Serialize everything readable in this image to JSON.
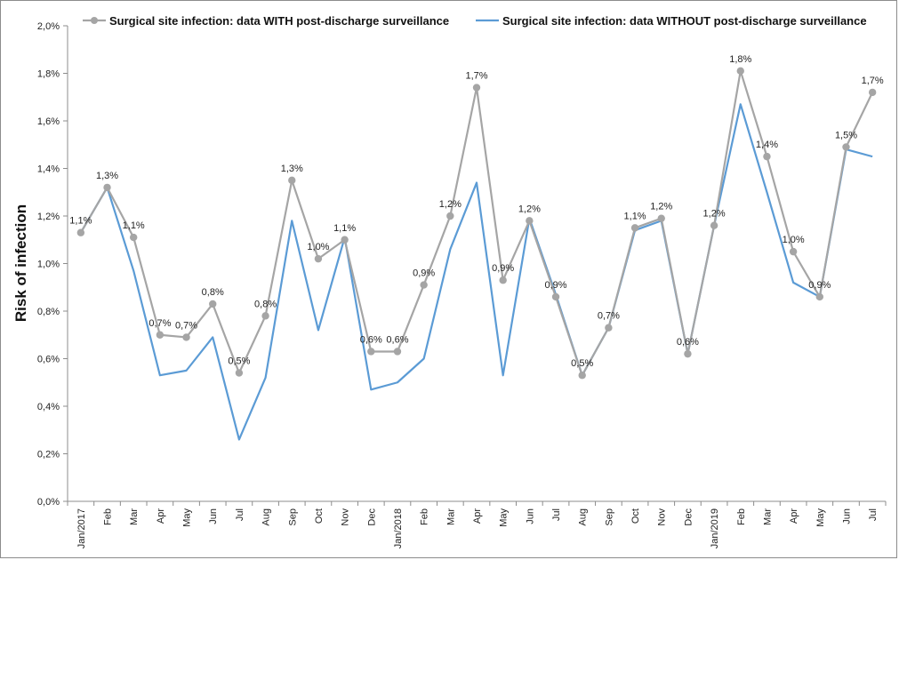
{
  "chart_data": {
    "type": "line",
    "ylabel": "Risk of infection",
    "xlabel": "",
    "ylim": [
      0,
      2.0
    ],
    "y_ticks": [
      "0,0%",
      "0,2%",
      "0,4%",
      "0,6%",
      "0,8%",
      "1,0%",
      "1,2%",
      "1,4%",
      "1,6%",
      "1,8%",
      "2,0%"
    ],
    "categories": [
      "Jan/2017",
      "Feb",
      "Mar",
      "Apr",
      "May",
      "Jun",
      "Jul",
      "Aug",
      "Sep",
      "Oct",
      "Nov",
      "Dec",
      "Jan/2018",
      "Feb",
      "Mar",
      "Apr",
      "May",
      "Jun",
      "Jul",
      "Aug",
      "Sep",
      "Oct",
      "Nov",
      "Dec",
      "Jan/2019",
      "Feb",
      "Mar",
      "Apr",
      "May",
      "Jun",
      "Jul"
    ],
    "legend_position": "top",
    "grid": false,
    "series": [
      {
        "name": "Surgical site infection: data WITH post-discharge surveillance",
        "color": "#a5a5a5",
        "marker": "circle",
        "values": [
          1.13,
          1.32,
          1.11,
          0.7,
          0.69,
          0.83,
          0.54,
          0.78,
          1.35,
          1.02,
          1.1,
          0.63,
          0.63,
          0.91,
          1.2,
          1.74,
          0.93,
          1.18,
          0.86,
          0.53,
          0.73,
          1.15,
          1.19,
          0.62,
          1.16,
          1.81,
          1.45,
          1.05,
          0.86,
          1.49,
          1.72
        ],
        "labels": [
          "1,1%",
          "1,3%",
          "1,1%",
          "0,7%",
          "0,7%",
          "0,8%",
          "0,5%",
          "0,8%",
          "1,3%",
          "1,0%",
          "1,1%",
          "0,6%",
          "0,6%",
          "0,9%",
          "1,2%",
          "1,7%",
          "0,9%",
          "1,2%",
          "0,9%",
          "0,5%",
          "0,7%",
          "1,1%",
          "1,2%",
          "0,6%",
          "1,2%",
          "1,8%",
          "1,4%",
          "1,0%",
          "0,9%",
          "1,5%",
          "1,7%"
        ]
      },
      {
        "name": "Surgical site infection: data WITHOUT post-discharge surveillance",
        "color": "#5b9bd5",
        "marker": "none",
        "values": [
          1.13,
          1.32,
          0.97,
          0.53,
          0.55,
          0.69,
          0.26,
          0.52,
          1.18,
          0.72,
          1.11,
          0.47,
          0.5,
          0.6,
          1.06,
          1.34,
          0.53,
          1.19,
          0.87,
          0.53,
          0.73,
          1.14,
          1.18,
          0.62,
          1.16,
          1.67,
          1.3,
          0.92,
          0.86,
          1.48,
          1.45
        ]
      }
    ]
  }
}
